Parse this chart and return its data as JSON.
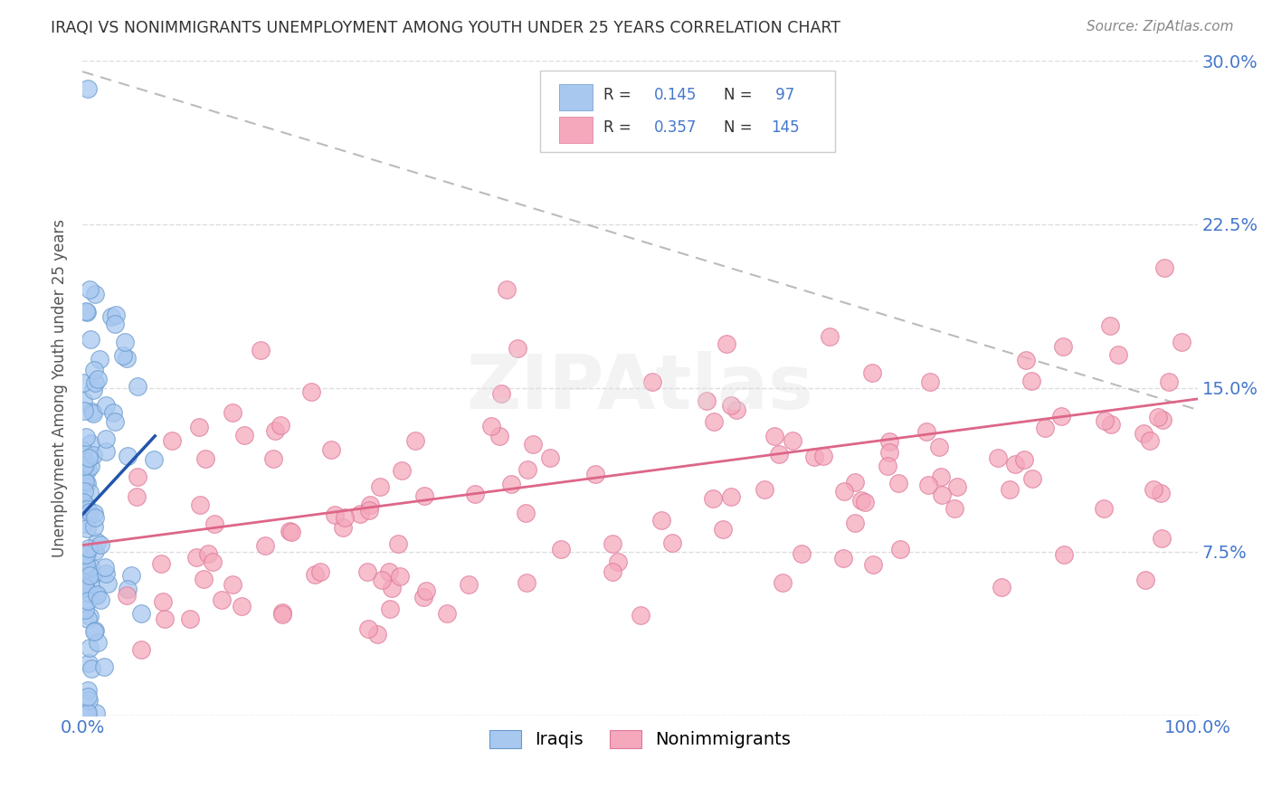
{
  "title": "IRAQI VS NONIMMIGRANTS UNEMPLOYMENT AMONG YOUTH UNDER 25 YEARS CORRELATION CHART",
  "source": "Source: ZipAtlas.com",
  "ylabel": "Unemployment Among Youth under 25 years",
  "xlim": [
    0,
    1.0
  ],
  "ylim": [
    0,
    0.3
  ],
  "r1": 0.145,
  "n1": 97,
  "r2": 0.357,
  "n2": 145,
  "iraqis_color": "#A8C8F0",
  "iraqis_edge_color": "#6699CC",
  "nonimmigrants_color": "#F5A8BC",
  "nonimmigrants_edge_color": "#DD7799",
  "iraqis_line_color": "#2255AA",
  "nonimmigrants_line_color": "#DD6688",
  "trend_dash_color": "#BBBBBB",
  "tick_color": "#4477CC",
  "ylabel_color": "#555555",
  "title_color": "#333333",
  "source_color": "#888888",
  "watermark_color": "#DDDDDD",
  "grid_color": "#DDDDDD",
  "legend_border_color": "#CCCCCC"
}
